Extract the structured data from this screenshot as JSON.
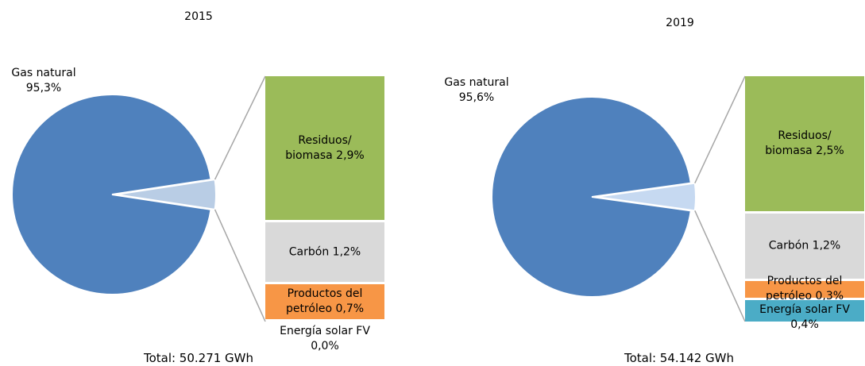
{
  "chart_data": [
    {
      "type": "pie",
      "title": "2015",
      "categories": [
        "Gas natural",
        "Residuos/ biomasa",
        "Carbón",
        "Productos del petróleo",
        "Energía solar FV"
      ],
      "values": [
        95.3,
        2.9,
        1.2,
        0.7,
        0.0
      ],
      "value_labels": [
        "95,3%",
        "2,9%",
        "1,2%",
        "0,7%",
        "0,0%"
      ],
      "colors": [
        "#4f81bd",
        "#9bbb59",
        "#d9d9d9",
        "#f79646",
        "#4bacc6"
      ],
      "other_color": "#b9cde5",
      "note": "Total:  50.271 GWh"
    },
    {
      "type": "pie",
      "title": "2019",
      "categories": [
        "Gas natural",
        "Residuos/ biomasa",
        "Carbón",
        "Productos del petróleo",
        "Energía solar FV"
      ],
      "values": [
        95.6,
        2.5,
        1.2,
        0.3,
        0.4
      ],
      "value_labels": [
        "95,6%",
        "2,5%",
        "1,2%",
        "0,3%",
        "0,4%"
      ],
      "colors": [
        "#4f81bd",
        "#9bbb59",
        "#d9d9d9",
        "#f79646",
        "#4bacc6"
      ],
      "other_color": "#c6d9f1",
      "note": "Total:  54.142 GWh"
    }
  ]
}
